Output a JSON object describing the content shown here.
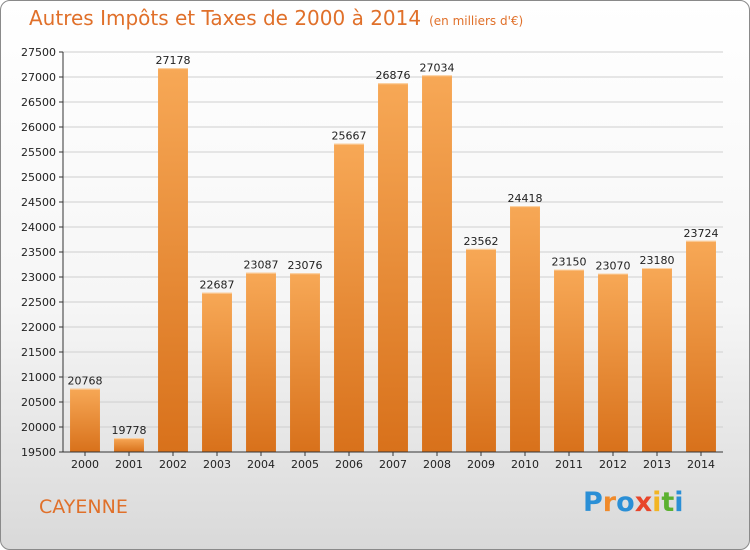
{
  "page": {
    "title": "Autres Impôts et Taxes de 2000 à 2014",
    "unit_note": "(en milliers d'€)",
    "city": "CAYENNE",
    "logo": {
      "text": "Proxiti",
      "letters": [
        "P",
        "r",
        "o",
        "x",
        "i",
        "t",
        "i"
      ],
      "colors": [
        "#2a8fd6",
        "#f08a2a",
        "#2a8fd6",
        "#e8452a",
        "#f2b523",
        "#5bb130",
        "#2a8fd6"
      ]
    }
  },
  "colors": {
    "title": "#e0702a",
    "bar_light": "#f7a856",
    "bar_dark": "#d8711b",
    "grid": "#cfcfcf",
    "axis": "#333333"
  },
  "chart_data": {
    "type": "bar",
    "title": "Autres Impôts et Taxes de 2000 à 2014",
    "subtitle": "(en milliers d'€)",
    "xlabel": "",
    "ylabel": "",
    "categories": [
      "2000",
      "2001",
      "2002",
      "2003",
      "2004",
      "2005",
      "2006",
      "2007",
      "2008",
      "2009",
      "2010",
      "2011",
      "2012",
      "2013",
      "2014"
    ],
    "values": [
      20768,
      19778,
      27178,
      22687,
      23087,
      23076,
      25667,
      26876,
      27034,
      23562,
      24418,
      23150,
      23070,
      23180,
      23724
    ],
    "data_labels": [
      "20768",
      "19778",
      "27178",
      "22687",
      "23087",
      "23076",
      "25667",
      "26876",
      "27034",
      "23562",
      "24418",
      "23150",
      "23070",
      "23180",
      "23724"
    ],
    "ylim": [
      19500,
      27500
    ],
    "yticks": [
      19500,
      20000,
      20500,
      21000,
      21500,
      22000,
      22500,
      23000,
      23500,
      24000,
      24500,
      25000,
      25500,
      26000,
      26500,
      27000,
      27500
    ],
    "grid": true,
    "legend": "none"
  }
}
